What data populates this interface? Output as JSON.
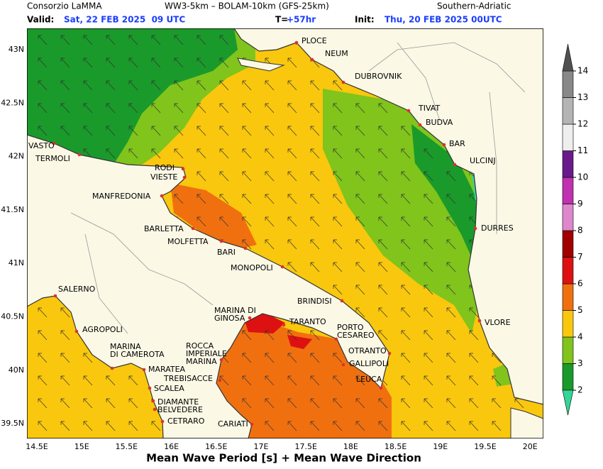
{
  "header": {
    "org": "Consorzio LaMMA",
    "model": "WW3-5km – BOLAM-10km (GFS-25km)",
    "region": "Southern-Adriatic",
    "valid_label": "Valid:",
    "valid": "Sat, 22 FEB 2025  09 UTC",
    "t_label": "T=",
    "t": "+57hr",
    "init_label": "Init:",
    "init": "Thu, 20 FEB 2025 00UTC"
  },
  "map": {
    "lat_labels": [
      "43N",
      "42.5N",
      "42N",
      "41.5N",
      "41N",
      "40.5N",
      "40N",
      "39.5N"
    ],
    "lon_labels": [
      "14.5E",
      "15E",
      "15.5E",
      "16E",
      "16.5E",
      "17E",
      "17.5E",
      "18E",
      "18.5E",
      "19E",
      "19.5E",
      "20E"
    ],
    "places": [
      [
        "PLOCE"
      ],
      [
        "NEUM"
      ],
      [
        "DUBROVNIK"
      ],
      [
        "TIVAT"
      ],
      [
        "BUDVA"
      ],
      [
        "BAR"
      ],
      [
        "ULCINJ"
      ],
      [
        "DURRES"
      ],
      [
        "VLORE"
      ],
      [
        "VASTO"
      ],
      [
        "TERMOLI"
      ],
      [
        "RODI"
      ],
      [
        "VIESTE"
      ],
      [
        "MANFREDONIA"
      ],
      [
        "BARLETTA"
      ],
      [
        "MOLFETTA"
      ],
      [
        "BARI"
      ],
      [
        "MONOPOLI"
      ],
      [
        "BRINDISI"
      ],
      [
        "MARINA DI",
        "GINOSA"
      ],
      [
        "TARANTO"
      ],
      [
        "PORTO",
        "CESAREO"
      ],
      [
        "OTRANTO"
      ],
      [
        "GALLIPOLI"
      ],
      [
        "LEUCA"
      ],
      [
        "SALERNO"
      ],
      [
        "AGROPOLI"
      ],
      [
        "MARINA",
        "DI CAMEROTA"
      ],
      [
        "ROCCA",
        "IMPERIALE",
        "MARINA"
      ],
      [
        "MARATEA"
      ],
      [
        "TREBISACCE"
      ],
      [
        "SCALEA"
      ],
      [
        "DIAMANTE"
      ],
      [
        "BELVEDERE"
      ],
      [
        "CETRARO"
      ],
      [
        "CARIATI"
      ]
    ]
  },
  "colorbar": {
    "labels": [
      2,
      3,
      4,
      5,
      6,
      7,
      8,
      9,
      10,
      11,
      12,
      13,
      14
    ],
    "colors": [
      "#1a9a2a",
      "#80c41c",
      "#f9c70d",
      "#f07010",
      "#dd1111",
      "#a00000",
      "#dd88cc",
      "#c030b0",
      "#6a1a8a",
      "#eeeeee",
      "#b4b4b4",
      "#888888"
    ],
    "under": "#33d699",
    "over": "#505050"
  },
  "footer": "Mean Wave Period [s] + Mean Wave Direction"
}
